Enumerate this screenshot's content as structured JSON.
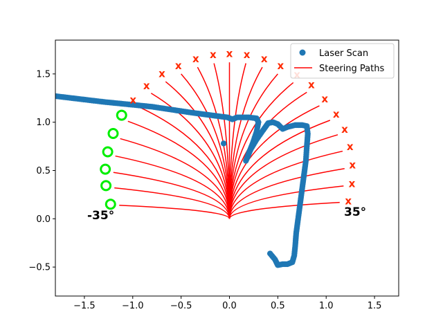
{
  "chart_data": {
    "type": "scatter",
    "title": "",
    "xlabel": "",
    "ylabel": "",
    "xlim": [
      -1.8,
      1.75
    ],
    "ylim": [
      -0.8,
      1.85
    ],
    "xticks": [
      -1.5,
      -1.0,
      -0.5,
      0.0,
      0.5,
      1.0,
      1.5
    ],
    "yticks": [
      -0.5,
      0.0,
      0.5,
      1.0,
      1.5
    ],
    "xtick_labels": [
      "−1.5",
      "−1.0",
      "−0.5",
      "0.0",
      "0.5",
      "1.0",
      "1.5"
    ],
    "ytick_labels": [
      "−0.5",
      "0.0",
      "0.5",
      "1.0",
      "1.5"
    ],
    "grid": false,
    "legend_position": "top-right",
    "colors": {
      "scan": "#1f77b4",
      "paths": "#ff0000",
      "blocked": "#ff2a00",
      "free": "#00ee00"
    },
    "legend": [
      {
        "label": "Laser Scan",
        "kind": "dot",
        "color": "#1f77b4"
      },
      {
        "label": "Steering Paths",
        "kind": "line",
        "color": "#ff0000"
      }
    ],
    "annotations": [
      {
        "text": "-35°",
        "x": -1.33,
        "y": 0.02
      },
      {
        "text": "35°",
        "x": 1.27,
        "y": 0.05
      }
    ],
    "steering_paths": {
      "origin": [
        0.0,
        0.0
      ],
      "min_angle_deg": -35,
      "max_angle_deg": 35,
      "endpoints": [
        [
          -1.14,
          0.14
        ],
        [
          -1.19,
          0.32
        ],
        [
          -1.2,
          0.48
        ],
        [
          -1.18,
          0.65
        ],
        [
          -1.13,
          0.83
        ],
        [
          -1.05,
          1.01
        ],
        [
          -0.94,
          1.16
        ],
        [
          -0.81,
          1.3
        ],
        [
          -0.66,
          1.42
        ],
        [
          -0.5,
          1.5
        ],
        [
          -0.33,
          1.57
        ],
        [
          -0.16,
          1.61
        ],
        [
          0.0,
          1.62
        ],
        [
          0.17,
          1.61
        ],
        [
          0.34,
          1.57
        ],
        [
          0.5,
          1.5
        ],
        [
          0.66,
          1.41
        ],
        [
          0.8,
          1.31
        ],
        [
          0.93,
          1.17
        ],
        [
          1.04,
          1.02
        ],
        [
          1.12,
          0.87
        ],
        [
          1.17,
          0.7
        ],
        [
          1.19,
          0.52
        ],
        [
          1.18,
          0.34
        ],
        [
          1.14,
          0.17
        ]
      ]
    },
    "path_status": [
      "free",
      "free",
      "free",
      "free",
      "free",
      "free",
      "blocked",
      "blocked",
      "blocked",
      "blocked",
      "blocked",
      "blocked",
      "blocked",
      "blocked",
      "blocked",
      "blocked",
      "blocked",
      "blocked",
      "blocked",
      "blocked",
      "blocked",
      "blocked",
      "blocked",
      "blocked",
      "blocked"
    ],
    "laser_scan": {
      "polyline": [
        [
          -1.8,
          1.27
        ],
        [
          -1.55,
          1.24
        ],
        [
          -1.3,
          1.21
        ],
        [
          -1.0,
          1.18
        ],
        [
          -0.8,
          1.16
        ],
        [
          -0.6,
          1.13
        ],
        [
          -0.4,
          1.1
        ],
        [
          -0.25,
          1.08
        ],
        [
          -0.1,
          1.06
        ],
        [
          -0.02,
          1.05
        ],
        [
          0.03,
          1.03
        ],
        [
          0.08,
          1.05
        ],
        [
          0.2,
          1.05
        ],
        [
          0.28,
          1.04
        ],
        [
          0.3,
          1.0
        ],
        [
          0.28,
          0.9
        ],
        [
          0.24,
          0.78
        ],
        [
          0.2,
          0.68
        ],
        [
          0.17,
          0.6
        ],
        [
          0.22,
          0.72
        ],
        [
          0.28,
          0.82
        ],
        [
          0.35,
          0.92
        ],
        [
          0.4,
          0.99
        ],
        [
          0.45,
          1.0
        ],
        [
          0.5,
          0.98
        ],
        [
          0.55,
          0.93
        ],
        [
          0.6,
          0.95
        ],
        [
          0.68,
          0.97
        ],
        [
          0.75,
          0.97
        ],
        [
          0.8,
          0.96
        ],
        [
          0.81,
          0.88
        ],
        [
          0.8,
          0.75
        ],
        [
          0.79,
          0.6
        ],
        [
          0.77,
          0.45
        ],
        [
          0.75,
          0.3
        ],
        [
          0.73,
          0.15
        ],
        [
          0.71,
          0.0
        ],
        [
          0.69,
          -0.15
        ],
        [
          0.68,
          -0.28
        ],
        [
          0.67,
          -0.38
        ],
        [
          0.65,
          -0.45
        ],
        [
          0.6,
          -0.47
        ],
        [
          0.55,
          -0.47
        ],
        [
          0.5,
          -0.48
        ],
        [
          0.47,
          -0.42
        ],
        [
          0.42,
          -0.36
        ]
      ],
      "isolated_points": [
        [
          -0.06,
          0.78
        ]
      ]
    }
  }
}
